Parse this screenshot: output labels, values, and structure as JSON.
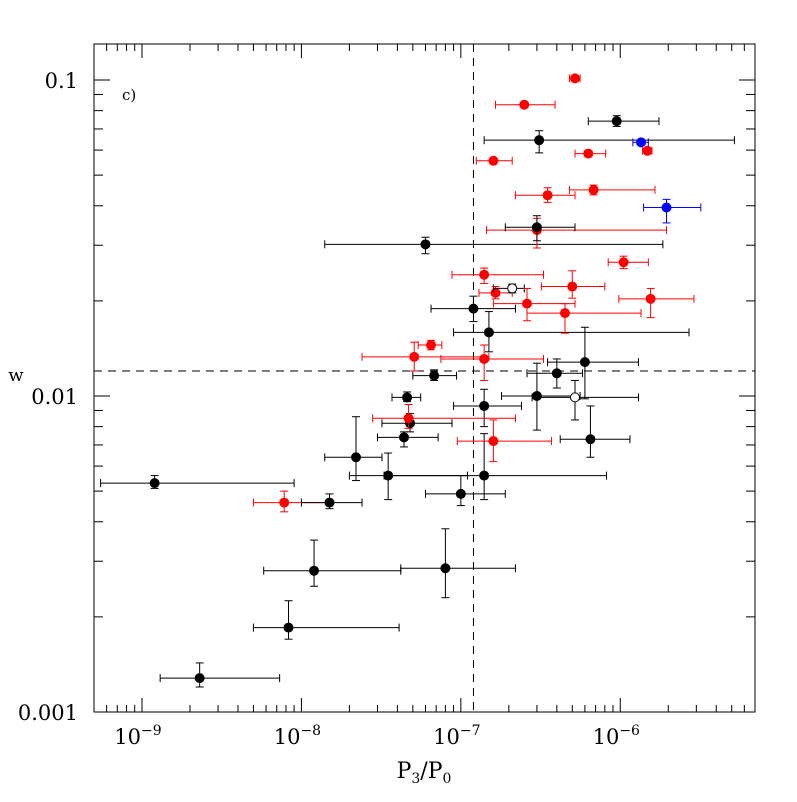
{
  "chart_data": {
    "type": "scatter",
    "panel_label": "c)",
    "xlabel_main": "P",
    "xlabel_sub3": "3",
    "xlabel_slash": "/P",
    "xlabel_sub0": "0",
    "ylabel": "w",
    "x_scale": "log",
    "y_scale": "log",
    "xlim": [
      5e-10,
      7e-06
    ],
    "ylim": [
      0.001,
      0.13
    ],
    "x_ticks": [
      {
        "value": 1e-09,
        "base": "10",
        "exp": "−9"
      },
      {
        "value": 1e-08,
        "base": "10",
        "exp": "−8"
      },
      {
        "value": 1e-07,
        "base": "10",
        "exp": "−7"
      },
      {
        "value": 1e-06,
        "base": "10",
        "exp": "−6"
      }
    ],
    "y_ticks": [
      {
        "value": 0.001,
        "label": "0.001"
      },
      {
        "value": 0.01,
        "label": "0.01"
      },
      {
        "value": 0.1,
        "label": "0.1"
      }
    ],
    "threshold_x": 1.2e-07,
    "threshold_y": 0.012,
    "colors": {
      "black": "#000000",
      "red": "#ff0000",
      "blue": "#0000ff"
    },
    "points": [
      {
        "x": 2.3e-09,
        "y": 0.00128,
        "xlo": 1.3e-09,
        "xhi": 7.3e-09,
        "ylo": 0.0012,
        "yhi": 0.00143,
        "color": "black",
        "filled": true
      },
      {
        "x": 8.3e-09,
        "y": 0.00185,
        "xlo": 5e-09,
        "xhi": 4.1e-08,
        "ylo": 0.0017,
        "yhi": 0.00225,
        "color": "black",
        "filled": true
      },
      {
        "x": 1.2e-08,
        "y": 0.0028,
        "xlo": 5.8e-09,
        "xhi": 4.2e-08,
        "ylo": 0.0025,
        "yhi": 0.0035,
        "color": "black",
        "filled": true
      },
      {
        "x": 8e-08,
        "y": 0.00285,
        "xlo": 4.2e-08,
        "xhi": 2.2e-07,
        "ylo": 0.0023,
        "yhi": 0.0038,
        "color": "black",
        "filled": true
      },
      {
        "x": 1.2e-09,
        "y": 0.0053,
        "xlo": 5.5e-10,
        "xhi": 9e-09,
        "ylo": 0.0051,
        "yhi": 0.0056,
        "color": "black",
        "filled": true
      },
      {
        "x": 7.8e-09,
        "y": 0.0046,
        "xlo": 5e-09,
        "xhi": 1.45e-08,
        "ylo": 0.0043,
        "yhi": 0.005,
        "color": "red",
        "filled": true
      },
      {
        "x": 1.5e-08,
        "y": 0.0046,
        "xlo": 1e-08,
        "xhi": 2.4e-08,
        "ylo": 0.0044,
        "yhi": 0.0049,
        "color": "black",
        "filled": true
      },
      {
        "x": 2.2e-08,
        "y": 0.0064,
        "xlo": 1.4e-08,
        "xhi": 3.2e-08,
        "ylo": 0.0054,
        "yhi": 0.0086,
        "color": "black",
        "filled": true
      },
      {
        "x": 3.5e-08,
        "y": 0.0056,
        "xlo": 2e-08,
        "xhi": 1.1e-07,
        "ylo": 0.0047,
        "yhi": 0.0066,
        "color": "black",
        "filled": true
      },
      {
        "x": 1e-07,
        "y": 0.0049,
        "xlo": 6e-08,
        "xhi": 1.9e-07,
        "ylo": 0.0045,
        "yhi": 0.0056,
        "color": "black",
        "filled": true
      },
      {
        "x": 1.4e-07,
        "y": 0.0056,
        "xlo": 3.3e-08,
        "xhi": 8.2e-07,
        "ylo": 0.0047,
        "yhi": 0.0076,
        "color": "black",
        "filled": true
      },
      {
        "x": 1.4e-07,
        "y": 0.0093,
        "xlo": 9e-08,
        "xhi": 2.4e-07,
        "ylo": 0.008,
        "yhi": 0.0105,
        "color": "black",
        "filled": true
      },
      {
        "x": 4.4e-08,
        "y": 0.0074,
        "xlo": 3e-08,
        "xhi": 7.2e-08,
        "ylo": 0.0069,
        "yhi": 0.0077,
        "color": "black",
        "filled": true
      },
      {
        "x": 4.8e-08,
        "y": 0.0082,
        "xlo": 3.2e-08,
        "xhi": 8.8e-08,
        "ylo": 0.0077,
        "yhi": 0.0088,
        "color": "black",
        "filled": true
      },
      {
        "x": 4.7e-08,
        "y": 0.0085,
        "xlo": 2.8e-08,
        "xhi": 2.2e-07,
        "ylo": 0.0079,
        "yhi": 0.0094,
        "color": "red",
        "filled": true
      },
      {
        "x": 4.6e-08,
        "y": 0.0099,
        "xlo": 3.7e-08,
        "xhi": 5.6e-08,
        "ylo": 0.0096,
        "yhi": 0.0103,
        "color": "black",
        "filled": true
      },
      {
        "x": 1.6e-07,
        "y": 0.0072,
        "xlo": 9.5e-08,
        "xhi": 3.7e-07,
        "ylo": 0.0062,
        "yhi": 0.0084,
        "color": "red",
        "filled": true
      },
      {
        "x": 3e-07,
        "y": 0.01,
        "xlo": 1.8e-07,
        "xhi": 5.6e-07,
        "ylo": 0.0078,
        "yhi": 0.0127,
        "color": "black",
        "filled": true
      },
      {
        "x": 5.2e-07,
        "y": 0.0099,
        "xlo": 2.8e-07,
        "xhi": 1.3e-06,
        "ylo": 0.0084,
        "yhi": 0.0112,
        "color": "black",
        "filled": false
      },
      {
        "x": 6.5e-07,
        "y": 0.0073,
        "xlo": 4.2e-07,
        "xhi": 1.15e-06,
        "ylo": 0.0064,
        "yhi": 0.0093,
        "color": "black",
        "filled": true
      },
      {
        "x": 4e-07,
        "y": 0.0118,
        "xlo": 2.6e-07,
        "xhi": 5.8e-07,
        "ylo": 0.0106,
        "yhi": 0.0131,
        "color": "black",
        "filled": true
      },
      {
        "x": 6e-07,
        "y": 0.0128,
        "xlo": 3.5e-07,
        "xhi": 1.3e-06,
        "ylo": 0.0098,
        "yhi": 0.0165,
        "color": "black",
        "filled": true
      },
      {
        "x": 6.8e-08,
        "y": 0.0116,
        "xlo": 5e-08,
        "xhi": 9.4e-08,
        "ylo": 0.0112,
        "yhi": 0.0121,
        "color": "black",
        "filled": true
      },
      {
        "x": 5.1e-08,
        "y": 0.0133,
        "xlo": 2.4e-08,
        "xhi": 1.5e-07,
        "ylo": 0.012,
        "yhi": 0.0148,
        "color": "red",
        "filled": true
      },
      {
        "x": 6.5e-08,
        "y": 0.0145,
        "xlo": 5.4e-08,
        "xhi": 7.6e-08,
        "ylo": 0.014,
        "yhi": 0.015,
        "color": "red",
        "filled": true
      },
      {
        "x": 1.4e-07,
        "y": 0.0131,
        "xlo": 7.5e-08,
        "xhi": 3.3e-07,
        "ylo": 0.0112,
        "yhi": 0.0145,
        "color": "red",
        "filled": true
      },
      {
        "x": 1.5e-07,
        "y": 0.0159,
        "xlo": 9e-08,
        "xhi": 2.7e-06,
        "ylo": 0.0138,
        "yhi": 0.0185,
        "color": "black",
        "filled": true
      },
      {
        "x": 1.2e-07,
        "y": 0.0189,
        "xlo": 6.5e-08,
        "xhi": 2.2e-07,
        "ylo": 0.0172,
        "yhi": 0.0207,
        "color": "black",
        "filled": true
      },
      {
        "x": 1.4e-07,
        "y": 0.0242,
        "xlo": 8.8e-08,
        "xhi": 3.3e-07,
        "ylo": 0.0227,
        "yhi": 0.0254,
        "color": "red",
        "filled": true
      },
      {
        "x": 1.65e-07,
        "y": 0.0212,
        "xlo": 1.3e-07,
        "xhi": 2.1e-07,
        "ylo": 0.0203,
        "yhi": 0.0222,
        "color": "red",
        "filled": true
      },
      {
        "x": 2.1e-07,
        "y": 0.0219,
        "xlo": 1.6e-07,
        "xhi": 2.5e-07,
        "ylo": 0.0212,
        "yhi": 0.0226,
        "color": "black",
        "filled": false
      },
      {
        "x": 2.6e-07,
        "y": 0.0196,
        "xlo": 1.6e-07,
        "xhi": 5.2e-07,
        "ylo": 0.0173,
        "yhi": 0.0219,
        "color": "red",
        "filled": true
      },
      {
        "x": 5e-07,
        "y": 0.0222,
        "xlo": 3.2e-07,
        "xhi": 8e-07,
        "ylo": 0.0204,
        "yhi": 0.0249,
        "color": "red",
        "filled": true
      },
      {
        "x": 4.5e-07,
        "y": 0.0183,
        "xlo": 2.6e-07,
        "xhi": 1.35e-06,
        "ylo": 0.0158,
        "yhi": 0.0196,
        "color": "red",
        "filled": true
      },
      {
        "x": 1.05e-06,
        "y": 0.0265,
        "xlo": 8.4e-07,
        "xhi": 1.5e-06,
        "ylo": 0.0253,
        "yhi": 0.0277,
        "color": "red",
        "filled": true
      },
      {
        "x": 1.55e-06,
        "y": 0.0203,
        "xlo": 9.8e-07,
        "xhi": 2.9e-06,
        "ylo": 0.0177,
        "yhi": 0.0219,
        "color": "red",
        "filled": true
      },
      {
        "x": 6e-08,
        "y": 0.0302,
        "xlo": 1.4e-08,
        "xhi": 1.85e-06,
        "ylo": 0.0282,
        "yhi": 0.0318,
        "color": "black",
        "filled": true
      },
      {
        "x": 3e-07,
        "y": 0.0335,
        "xlo": 1.45e-07,
        "xhi": 1.95e-06,
        "ylo": 0.0294,
        "yhi": 0.0365,
        "color": "red",
        "filled": true
      },
      {
        "x": 3e-07,
        "y": 0.0342,
        "xlo": 1.9e-07,
        "xhi": 5.2e-07,
        "ylo": 0.031,
        "yhi": 0.0372,
        "color": "black",
        "filled": true
      },
      {
        "x": 3.5e-07,
        "y": 0.0432,
        "xlo": 2.2e-07,
        "xhi": 5.2e-07,
        "ylo": 0.041,
        "yhi": 0.0456,
        "color": "red",
        "filled": true
      },
      {
        "x": 6.8e-07,
        "y": 0.0449,
        "xlo": 4.8e-07,
        "xhi": 1.65e-06,
        "ylo": 0.0433,
        "yhi": 0.0465,
        "color": "red",
        "filled": true
      },
      {
        "x": 1.95e-06,
        "y": 0.0395,
        "xlo": 1.4e-06,
        "xhi": 3.2e-06,
        "ylo": 0.0353,
        "yhi": 0.0419,
        "color": "blue",
        "filled": true
      },
      {
        "x": 1.6e-07,
        "y": 0.0555,
        "xlo": 1.25e-07,
        "xhi": 2.1e-07,
        "ylo": 0.0547,
        "yhi": 0.0563,
        "color": "red",
        "filled": true
      },
      {
        "x": 6.3e-07,
        "y": 0.0585,
        "xlo": 5.2e-07,
        "xhi": 8.1e-07,
        "ylo": 0.0573,
        "yhi": 0.0597,
        "color": "red",
        "filled": true
      },
      {
        "x": 3.1e-07,
        "y": 0.0645,
        "xlo": 1.4e-07,
        "xhi": 5.2e-06,
        "ylo": 0.0588,
        "yhi": 0.0691,
        "color": "black",
        "filled": true
      },
      {
        "x": 1.35e-06,
        "y": 0.0635,
        "xlo": 1.2e-06,
        "xhi": 1.5e-06,
        "ylo": 0.0625,
        "yhi": 0.0645,
        "color": "blue",
        "filled": true
      },
      {
        "x": 1.48e-06,
        "y": 0.0597,
        "xlo": 1.38e-06,
        "xhi": 1.58e-06,
        "ylo": 0.0589,
        "yhi": 0.0605,
        "color": "red",
        "filled": true
      },
      {
        "x": 2.5e-07,
        "y": 0.0835,
        "xlo": 1.65e-07,
        "xhi": 3.9e-07,
        "ylo": 0.0819,
        "yhi": 0.0851,
        "color": "red",
        "filled": true
      },
      {
        "x": 9.5e-07,
        "y": 0.0741,
        "xlo": 6.3e-07,
        "xhi": 1.75e-06,
        "ylo": 0.0713,
        "yhi": 0.0771,
        "color": "black",
        "filled": true
      },
      {
        "x": 5.2e-07,
        "y": 0.1012,
        "xlo": 4.8e-07,
        "xhi": 5.6e-07,
        "ylo": 0.1,
        "yhi": 0.1024,
        "color": "red",
        "filled": true
      }
    ]
  }
}
